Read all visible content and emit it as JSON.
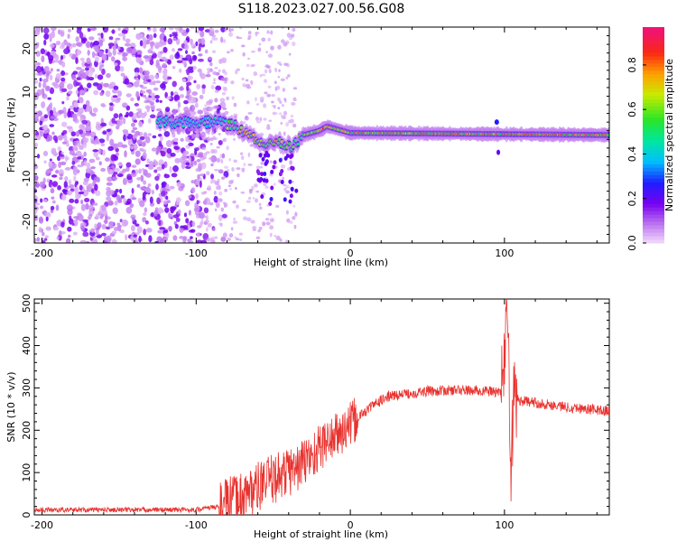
{
  "title": "S118.2023.027.00.56.G08",
  "chart_data": [
    {
      "type": "heatmap",
      "xlabel": "Height of straight line (km)",
      "ylabel": "Frequency (Hz)",
      "xlim": [
        -205,
        168
      ],
      "ylim": [
        -25,
        25
      ],
      "x_ticks": [
        -200,
        -100,
        0,
        100
      ],
      "y_ticks": [
        -20,
        -10,
        0,
        10,
        20
      ],
      "colorbar": {
        "label": "Normalized spectral amplitude",
        "ticks": [
          "0.0",
          "0.2",
          "0.4",
          "0.6",
          "0.8"
        ],
        "range": [
          0,
          0.97
        ]
      },
      "ridge": {
        "description_points": [
          {
            "x": -120,
            "y": 3
          },
          {
            "x": -85,
            "y": 3
          },
          {
            "x": -75,
            "y": 2
          },
          {
            "x": -65,
            "y": 0
          },
          {
            "x": -55,
            "y": -2
          },
          {
            "x": -45,
            "y": -2
          },
          {
            "x": -38,
            "y": -3
          },
          {
            "x": -30,
            "y": 0
          },
          {
            "x": -20,
            "y": 1
          },
          {
            "x": -15,
            "y": 2
          },
          {
            "x": -5,
            "y": 1
          },
          {
            "x": 0,
            "y": 0.5
          },
          {
            "x": 168,
            "y": 0
          }
        ]
      }
    },
    {
      "type": "line",
      "xlabel": "Height of straight line (km)",
      "ylabel": "SNR (10 * v/v)",
      "xlim": [
        -205,
        168
      ],
      "ylim": [
        0,
        510
      ],
      "x_ticks": [
        -200,
        -100,
        0,
        100
      ],
      "y_ticks": [
        0,
        100,
        200,
        300,
        400,
        500
      ],
      "series": [
        {
          "color": "#e8322e",
          "x": [
            -205,
            -150,
            -100,
            -85,
            -75,
            -65,
            -55,
            -45,
            -35,
            -25,
            -15,
            -5,
            5,
            15,
            25,
            35,
            50,
            70,
            90,
            98,
            102,
            104,
            106,
            110,
            120,
            140,
            168
          ],
          "y": [
            12,
            12,
            12,
            20,
            35,
            55,
            75,
            95,
            110,
            140,
            175,
            195,
            230,
            260,
            280,
            285,
            292,
            295,
            292,
            290,
            500,
            90,
            280,
            270,
            265,
            255,
            245
          ]
        }
      ]
    }
  ]
}
